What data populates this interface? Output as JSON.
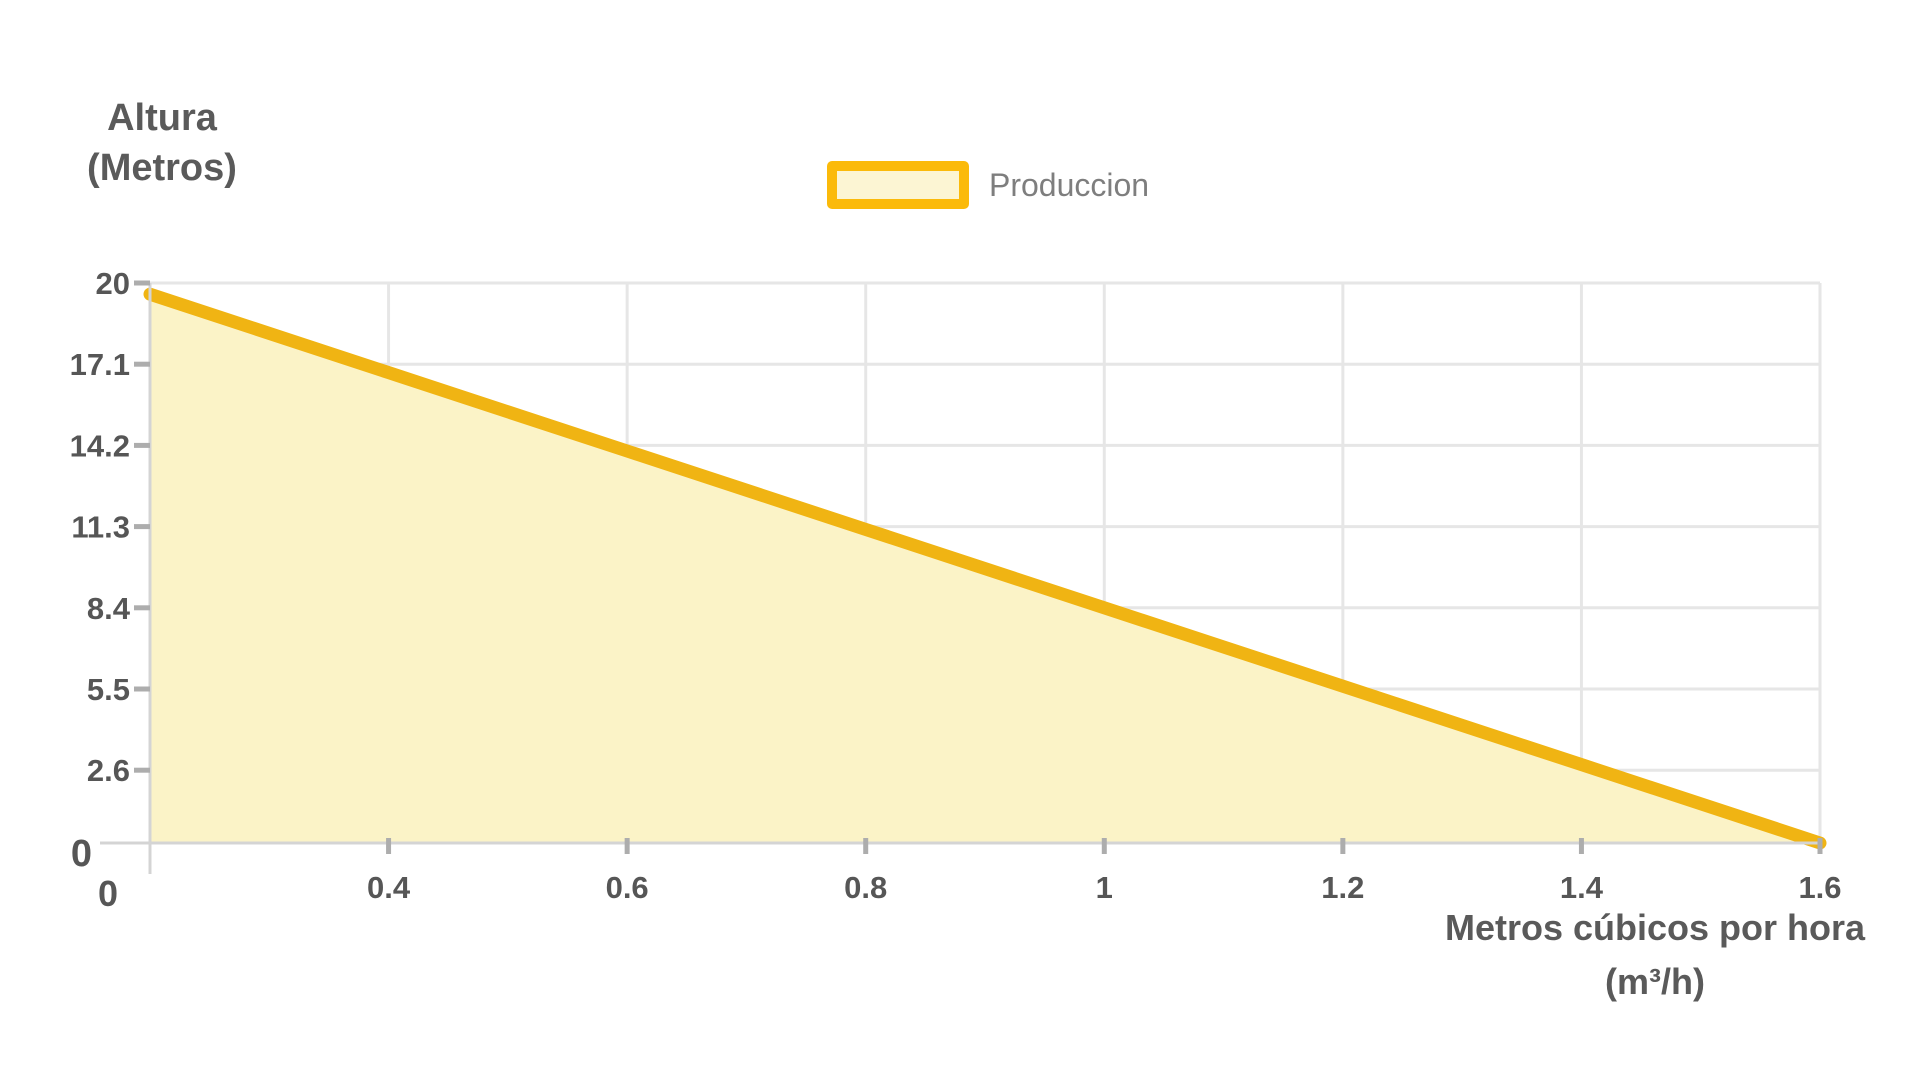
{
  "chart_data": {
    "type": "area",
    "title": "",
    "categories": [
      "0",
      "0.4",
      "0.6",
      "0.8",
      "1",
      "1.2",
      "1.4",
      "1.6"
    ],
    "series": [
      {
        "name": "Produccion",
        "values": [
          19.6,
          16.8,
          14.0,
          11.2,
          8.4,
          5.6,
          2.8,
          0
        ]
      }
    ],
    "xlabel": "Metros cúbicos por hora (m³/h)",
    "ylabel": "Altura (Metros)",
    "ylim": [
      0,
      20
    ],
    "y_tick_labels": [
      "20",
      "17.1",
      "14.2",
      "11.3",
      "8.4",
      "5.5",
      "2.6",
      "0"
    ],
    "grid": true,
    "legend_position": "top-center"
  },
  "y_axis": {
    "title_line1": "Altura",
    "title_line2": "(Metros)"
  },
  "x_axis": {
    "title_line1": "Metros cúbicos por hora",
    "title_line2": "(m³/h)"
  },
  "legend": {
    "label": "Produccion"
  },
  "colors": {
    "background": "#ffffff",
    "line": "#f0b413",
    "fill": "#fbf3c7",
    "legend_border": "#fbba0a",
    "legend_fill": "#fcf5d3",
    "grid": "#e6e6e6",
    "axis": "#d4d4d4",
    "tick": "#adadad",
    "tick_label": "#565656",
    "title": "#5a5a5a",
    "legend_text": "#7e7e7e"
  }
}
